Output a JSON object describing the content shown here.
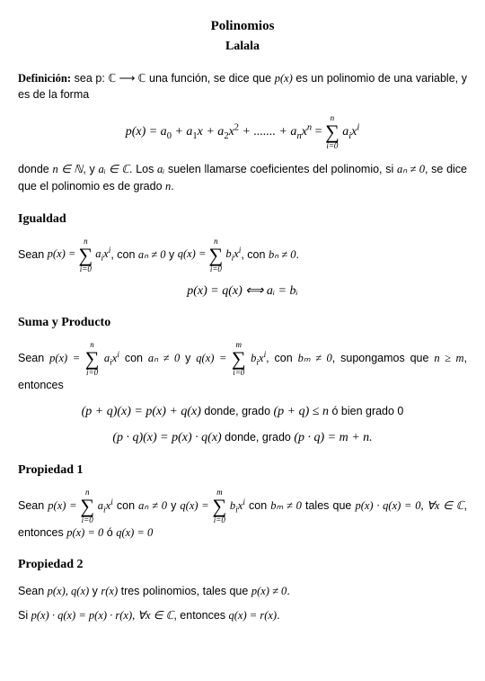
{
  "title": "Polinomios",
  "subtitle": "Lalala",
  "def_label": "Definición:",
  "def_text_a": " sea p: ",
  "def_map": "ℂ ⟶ ℂ",
  "def_text_b": " una función, se dice que ",
  "def_px": "p(x)",
  "def_text_c": " es un polinomio de una variable, y es de la forma",
  "def_eq_lhs": "p(x) = a",
  "def_eq_mid": " + a",
  "def_eq_x": "x + a",
  "def_eq_x2a": "x",
  "def_eq_dots": " + ....... + a",
  "def_eq_xn": "x",
  "def_eq_eq": " = ",
  "sum_n": "n",
  "sum_i0": "i=0",
  "sum_term_a": "a",
  "sum_term_x": "x",
  "after_def_a": "donde ",
  "after_def_nN": "n ∈ ℕ",
  "after_def_b": ", y ",
  "after_def_aiC": "aᵢ ∈ ℂ",
  "after_def_c": ". Los ",
  "after_def_ai": "aᵢ",
  "after_def_d": " suelen llamarse coeficientes del polinomio, si ",
  "after_def_an": "aₙ ≠ 0",
  "after_def_e": ", se dice que el polinomio es de grado ",
  "after_def_n": "n",
  "after_def_f": ".",
  "igualdad_heading": "Igualdad",
  "igualdad_a": "Sean ",
  "igualdad_px": "p(x) = ",
  "igualdad_mid1": ", con ",
  "igualdad_an0": "aₙ ≠ 0",
  "igualdad_mid2": " y ",
  "igualdad_qx": "q(x) = ",
  "sum_term_b": "b",
  "igualdad_bn0": "bₙ ≠ 0",
  "igualdad_eq": "p(x) = q(x) ⟺ aᵢ = bᵢ",
  "suma_heading": "Suma y Producto",
  "suma_a": "Sean ",
  "suma_mid1": " con ",
  "suma_mid2": " y ",
  "sum_m": "m",
  "suma_bm0": "bₘ ≠ 0",
  "suma_mid3": ", supongamos que ",
  "suma_ngem": "n ≥ m",
  "suma_mid4": ", entonces",
  "suma_eq1_a": "(p + q)(x) = p(x) + q(x)",
  "suma_eq1_b": " donde, grado ",
  "suma_eq1_c": "(p + q) ≤ n",
  "suma_eq1_d": " ó bien grado 0",
  "suma_eq2_a": "(p · q)(x) = p(x) · q(x)",
  "suma_eq2_b": " donde, grado ",
  "suma_eq2_c": "(p · q) = m + n.",
  "prop1_heading": "Propiedad 1",
  "prop1_mid": " tales que ",
  "prop1_pq0": "p(x) · q(x) = 0, ∀x ∈ ℂ",
  "prop1_then": ", entonces ",
  "prop1_p0": "p(x) = 0",
  "prop1_or": " ó ",
  "prop1_q0": "q(x) = 0",
  "prop2_heading": "Propiedad 2",
  "prop2_a": "Sean ",
  "prop2_pqr": "p(x), q(x)",
  "prop2_b": " y ",
  "prop2_r": "r(x)",
  "prop2_c": " tres polinomios, tales que ",
  "prop2_pne0": "p(x) ≠ 0",
  "prop2_d": ".",
  "prop2_si": "Si ",
  "prop2_eq": "p(x) · q(x) = p(x) · r(x), ∀x ∈ ℂ",
  "prop2_then": ", entonces ",
  "prop2_qr": "q(x) = r(x)",
  "prop2_end": "."
}
